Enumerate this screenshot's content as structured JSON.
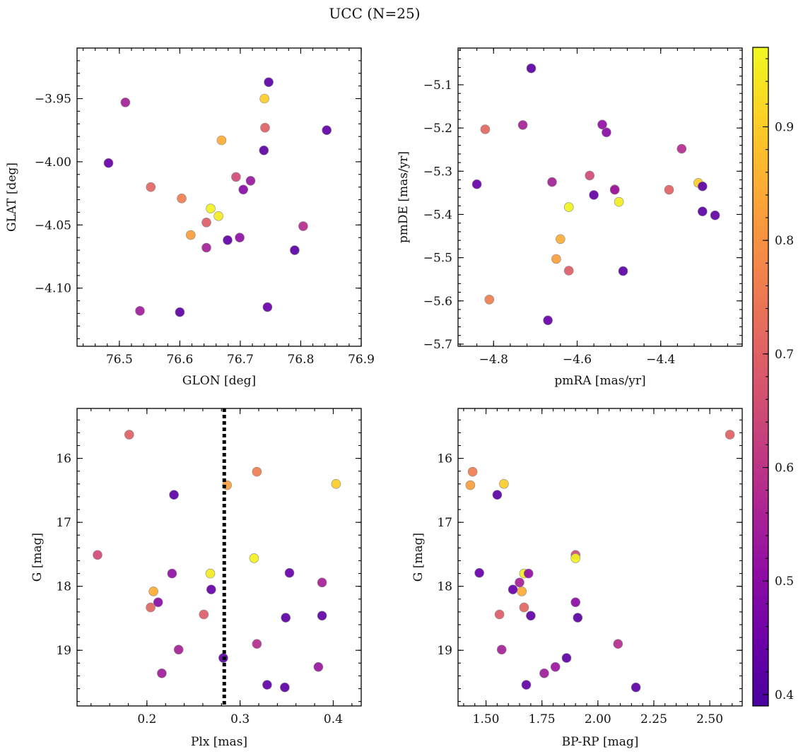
{
  "title": "UCC (N=25)",
  "colorbar": {
    "cmap": "plasma",
    "min": 0.39,
    "max": 0.97,
    "ticks": [
      0.4,
      0.5,
      0.6,
      0.7,
      0.8,
      0.9
    ]
  },
  "stars": [
    {
      "glon": 76.51,
      "glat": -3.953,
      "pmra": -4.73,
      "pmde": -5.193,
      "plx": 0.234,
      "g": 18.99,
      "bprp": 1.57,
      "p": 0.55
    },
    {
      "glon": 76.747,
      "glat": -3.937,
      "pmra": -4.71,
      "pmde": -5.062,
      "plx": 0.229,
      "g": 16.57,
      "bprp": 1.55,
      "p": 0.42
    },
    {
      "glon": 76.74,
      "glat": -3.95,
      "pmra": -4.31,
      "pmde": -5.327,
      "plx": 0.403,
      "g": 16.4,
      "bprp": 1.58,
      "p": 0.9
    },
    {
      "glon": 76.741,
      "glat": -3.973,
      "pmra": -4.38,
      "pmde": -5.343,
      "plx": 0.181,
      "g": 15.63,
      "bprp": 2.59,
      "p": 0.7
    },
    {
      "glon": 76.843,
      "glat": -3.975,
      "pmra": -4.27,
      "pmde": -5.402,
      "plx": 0.388,
      "g": 18.46,
      "bprp": 1.7,
      "p": 0.43
    },
    {
      "glon": 76.669,
      "glat": -3.983,
      "pmra": -4.64,
      "pmde": -5.457,
      "plx": 0.207,
      "g": 18.08,
      "bprp": 1.66,
      "p": 0.85
    },
    {
      "glon": 76.739,
      "glat": -3.991,
      "pmra": -4.3,
      "pmde": -5.393,
      "plx": 0.348,
      "g": 19.58,
      "bprp": 2.17,
      "p": 0.42
    },
    {
      "glon": 76.482,
      "glat": -4.001,
      "pmra": -4.84,
      "pmde": -5.33,
      "plx": 0.353,
      "g": 17.79,
      "bprp": 1.47,
      "p": 0.44
    },
    {
      "glon": 76.693,
      "glat": -4.012,
      "pmra": -4.57,
      "pmde": -5.31,
      "plx": 0.147,
      "g": 17.51,
      "bprp": 1.9,
      "p": 0.65
    },
    {
      "glon": 76.717,
      "glat": -4.015,
      "pmra": -4.51,
      "pmde": -5.342,
      "plx": 0.384,
      "g": 19.26,
      "bprp": 1.81,
      "p": 0.53
    },
    {
      "glon": 76.705,
      "glat": -4.022,
      "pmra": -4.53,
      "pmde": -5.21,
      "plx": 0.212,
      "g": 18.25,
      "bprp": 1.9,
      "p": 0.5
    },
    {
      "glon": 76.552,
      "glat": -4.02,
      "pmra": -4.82,
      "pmde": -5.203,
      "plx": 0.204,
      "g": 18.33,
      "bprp": 1.67,
      "p": 0.71
    },
    {
      "glon": 76.603,
      "glat": -4.029,
      "pmra": -4.81,
      "pmde": -5.597,
      "plx": 0.318,
      "g": 16.21,
      "bprp": 1.44,
      "p": 0.76
    },
    {
      "glon": 76.651,
      "glat": -4.037,
      "pmra": -4.62,
      "pmde": -5.383,
      "plx": 0.315,
      "g": 17.56,
      "bprp": 1.9,
      "p": 0.96
    },
    {
      "glon": 76.664,
      "glat": -4.043,
      "pmra": -4.5,
      "pmde": -5.371,
      "plx": 0.268,
      "g": 17.8,
      "bprp": 1.67,
      "p": 0.95
    },
    {
      "glon": 76.644,
      "glat": -4.048,
      "pmra": -4.62,
      "pmde": -5.53,
      "plx": 0.261,
      "g": 18.44,
      "bprp": 1.56,
      "p": 0.69
    },
    {
      "glon": 76.804,
      "glat": -4.051,
      "pmra": -4.35,
      "pmde": -5.248,
      "plx": 0.318,
      "g": 18.9,
      "bprp": 2.09,
      "p": 0.58
    },
    {
      "glon": 76.618,
      "glat": -4.058,
      "pmra": -4.65,
      "pmde": -5.503,
      "plx": 0.286,
      "g": 16.42,
      "bprp": 1.43,
      "p": 0.82
    },
    {
      "glon": 76.679,
      "glat": -4.062,
      "pmra": -4.56,
      "pmde": -5.355,
      "plx": 0.329,
      "g": 19.54,
      "bprp": 1.68,
      "p": 0.43
    },
    {
      "glon": 76.699,
      "glat": -4.06,
      "pmra": -4.54,
      "pmde": -5.192,
      "plx": 0.227,
      "g": 17.8,
      "bprp": 1.69,
      "p": 0.51
    },
    {
      "glon": 76.644,
      "glat": -4.068,
      "pmra": -4.66,
      "pmde": -5.325,
      "plx": 0.388,
      "g": 17.94,
      "bprp": 1.65,
      "p": 0.55
    },
    {
      "glon": 76.79,
      "glat": -4.07,
      "pmra": -4.49,
      "pmde": -5.531,
      "plx": 0.349,
      "g": 18.49,
      "bprp": 1.91,
      "p": 0.42
    },
    {
      "glon": 76.534,
      "glat": -4.118,
      "pmra": -4.51,
      "pmde": -5.343,
      "plx": 0.216,
      "g": 19.36,
      "bprp": 1.76,
      "p": 0.54
    },
    {
      "glon": 76.6,
      "glat": -4.119,
      "pmra": -4.3,
      "pmde": -5.335,
      "plx": 0.282,
      "g": 19.12,
      "bprp": 1.86,
      "p": 0.42
    },
    {
      "glon": 76.745,
      "glat": -4.115,
      "pmra": -4.67,
      "pmde": -5.645,
      "plx": 0.269,
      "g": 18.05,
      "bprp": 1.62,
      "p": 0.44
    }
  ],
  "chart_data": [
    {
      "type": "scatter",
      "xfield": "glon",
      "yfield": "glat",
      "xlabel": "GLON [deg]",
      "ylabel": "GLAT [deg]",
      "xlim": [
        76.43,
        76.9
      ],
      "ylim": [
        -4.146,
        -3.91
      ],
      "yinvert": false,
      "xticks": [
        76.5,
        76.6,
        76.7,
        76.8,
        76.9
      ],
      "xticklabels": [
        "76.5",
        "76.6",
        "76.7",
        "76.8",
        "76.9"
      ],
      "yticks": [
        -3.95,
        -4.0,
        -4.05,
        -4.1
      ],
      "yticklabels": [
        "−3.95",
        "−4.00",
        "−4.05",
        "−4.10"
      ],
      "xminor": 0.02,
      "yminor": 0.01
    },
    {
      "type": "scatter",
      "xfield": "pmra",
      "yfield": "pmde",
      "xlabel": "pmRA [mas/yr]",
      "ylabel": "pmDE [mas/yr]",
      "xlim": [
        -4.885,
        -4.205
      ],
      "ylim": [
        -5.705,
        -5.015
      ],
      "yinvert": false,
      "xticks": [
        -4.8,
        -4.6,
        -4.4
      ],
      "xticklabels": [
        "−4.8",
        "−4.6",
        "−4.4"
      ],
      "yticks": [
        -5.1,
        -5.2,
        -5.3,
        -5.4,
        -5.5,
        -5.6,
        -5.7
      ],
      "yticklabels": [
        "−5.1",
        "−5.2",
        "−5.3",
        "−5.4",
        "−5.5",
        "−5.6",
        "−5.7"
      ],
      "xminor": 0.04,
      "yminor": 0.02
    },
    {
      "type": "scatter",
      "xfield": "plx",
      "yfield": "g",
      "xlabel": "Plx [mas]",
      "ylabel": "G [mag]",
      "xlim": [
        0.125,
        0.43
      ],
      "ylim": [
        15.22,
        19.87
      ],
      "yinvert": true,
      "xticks": [
        0.2,
        0.3,
        0.4
      ],
      "xticklabels": [
        "0.2",
        "0.3",
        "0.4"
      ],
      "yticks": [
        16,
        17,
        18,
        19
      ],
      "yticklabels": [
        "16",
        "17",
        "18",
        "19"
      ],
      "xminor": 0.02,
      "yminor": 0.2,
      "vline": 0.283
    },
    {
      "type": "scatter",
      "xfield": "bprp",
      "yfield": "g",
      "xlabel": "BP-RP [mag]",
      "ylabel": "G [mag]",
      "xlim": [
        1.375,
        2.645
      ],
      "ylim": [
        15.22,
        19.87
      ],
      "yinvert": true,
      "xticks": [
        1.5,
        1.75,
        2.0,
        2.25,
        2.5
      ],
      "xticklabels": [
        "1.50",
        "1.75",
        "2.00",
        "2.25",
        "2.50"
      ],
      "yticks": [
        16,
        17,
        18,
        19
      ],
      "yticklabels": [
        "16",
        "17",
        "18",
        "19"
      ],
      "xminor": 0.05,
      "yminor": 0.2
    }
  ]
}
